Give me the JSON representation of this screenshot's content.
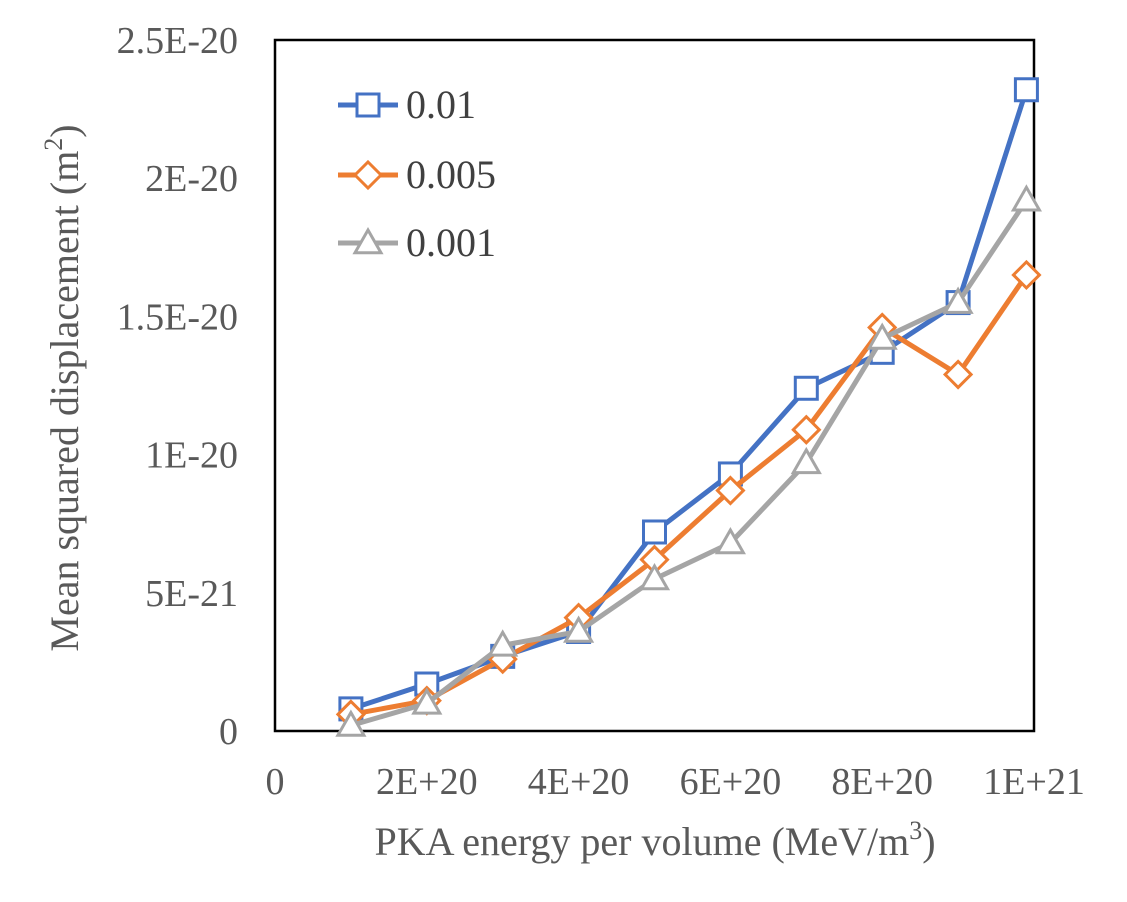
{
  "chart_data": {
    "type": "line",
    "title": "",
    "xlabel": "PKA energy per volume (MeV/m",
    "xlabel_sup": "3",
    "xlabel_end": ")",
    "ylabel": "Mean squared displacement (m",
    "ylabel_sup": "2",
    "ylabel_end": ")",
    "xlim": [
      0,
      1e+21
    ],
    "ylim": [
      0,
      2.5e-20
    ],
    "x_ticks": [
      0,
      2e+20,
      4e+20,
      6e+20,
      8e+20,
      1e+21
    ],
    "x_tick_labels": [
      "0",
      "2E+20",
      "4E+20",
      "6E+20",
      "8E+20",
      "1E+21"
    ],
    "y_ticks": [
      0,
      5e-21,
      1e-20,
      1.5e-20,
      2e-20,
      2.5e-20
    ],
    "y_tick_labels": [
      "0",
      "5E-21",
      "1E-20",
      "1.5E-20",
      "2E-20",
      "2.5E-20"
    ],
    "grid": false,
    "legend_position": "top-left",
    "x": [
      1e+20,
      2e+20,
      3e+20,
      4e+20,
      5e+20,
      6e+20,
      7e+20,
      8e+20,
      9e+20,
      9.9e+20
    ],
    "series": [
      {
        "name": "0.01",
        "color": "#4472C4",
        "marker": "square",
        "values": [
          8e-22,
          1.7e-21,
          2.7e-21,
          3.6e-21,
          7.2e-21,
          9.3e-21,
          1.24e-20,
          1.37e-20,
          1.55e-20,
          2.32e-20
        ]
      },
      {
        "name": "0.005",
        "color": "#ED7D31",
        "marker": "diamond",
        "values": [
          6e-22,
          1.1e-21,
          2.6e-21,
          4.1e-21,
          6.2e-21,
          8.7e-21,
          1.09e-20,
          1.46e-20,
          1.29e-20,
          1.65e-20
        ]
      },
      {
        "name": "0.001",
        "color": "#A5A5A5",
        "marker": "triangle",
        "values": [
          2e-22,
          1e-21,
          3.1e-21,
          3.6e-21,
          5.5e-21,
          6.8e-21,
          9.7e-21,
          1.42e-20,
          1.55e-20,
          1.92e-20
        ]
      }
    ]
  }
}
